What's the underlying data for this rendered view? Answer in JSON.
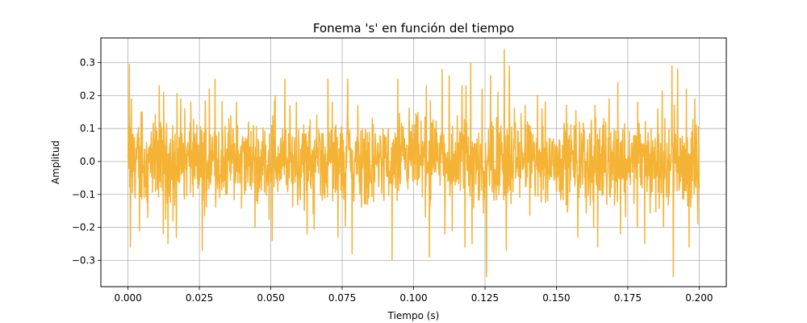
{
  "chart_data": {
    "type": "line",
    "title": "Fonema 's' en función del tiempo",
    "xlabel": "Tiempo (s)",
    "ylabel": "Amplitud",
    "xlim": [
      -0.0095,
      0.2095
    ],
    "ylim": [
      -0.38,
      0.375
    ],
    "grid": true,
    "x_ticks": [
      0.0,
      0.025,
      0.05,
      0.075,
      0.1,
      0.125,
      0.15,
      0.175,
      0.2
    ],
    "x_tick_labels": [
      "0.000",
      "0.025",
      "0.050",
      "0.075",
      "0.100",
      "0.125",
      "0.150",
      "0.175",
      "0.200"
    ],
    "y_ticks": [
      0.3,
      0.2,
      0.1,
      0.0,
      -0.1,
      -0.2,
      -0.3
    ],
    "y_tick_labels": [
      "0.3",
      "0.2",
      "0.1",
      "0.0",
      "−0.1",
      "−0.2",
      "−0.3"
    ],
    "series": [
      {
        "color": "#f5b335",
        "x_start": 0.0,
        "x_end": 0.2,
        "peaks": [
          {
            "x": 0.0005,
            "y": 0.295
          },
          {
            "x": 0.0008,
            "y": -0.26
          },
          {
            "x": 0.0012,
            "y": 0.19
          },
          {
            "x": 0.004,
            "y": -0.21
          },
          {
            "x": 0.005,
            "y": 0.15
          },
          {
            "x": 0.007,
            "y": -0.17
          },
          {
            "x": 0.011,
            "y": 0.23
          },
          {
            "x": 0.0125,
            "y": 0.21
          },
          {
            "x": 0.014,
            "y": -0.25
          },
          {
            "x": 0.017,
            "y": -0.23
          },
          {
            "x": 0.0185,
            "y": 0.19
          },
          {
            "x": 0.022,
            "y": 0.18
          },
          {
            "x": 0.026,
            "y": -0.27
          },
          {
            "x": 0.0285,
            "y": 0.22
          },
          {
            "x": 0.0305,
            "y": 0.25
          },
          {
            "x": 0.038,
            "y": 0.18
          },
          {
            "x": 0.0445,
            "y": -0.2
          },
          {
            "x": 0.0505,
            "y": -0.24
          },
          {
            "x": 0.0515,
            "y": 0.2
          },
          {
            "x": 0.055,
            "y": 0.25
          },
          {
            "x": 0.059,
            "y": 0.18
          },
          {
            "x": 0.0627,
            "y": -0.22
          },
          {
            "x": 0.07,
            "y": 0.25
          },
          {
            "x": 0.0715,
            "y": 0.18
          },
          {
            "x": 0.0735,
            "y": -0.23
          },
          {
            "x": 0.077,
            "y": 0.25
          },
          {
            "x": 0.0785,
            "y": -0.28
          },
          {
            "x": 0.0805,
            "y": 0.17
          },
          {
            "x": 0.0855,
            "y": 0.13
          },
          {
            "x": 0.0925,
            "y": -0.3
          },
          {
            "x": 0.0945,
            "y": 0.25
          },
          {
            "x": 0.1045,
            "y": 0.23
          },
          {
            "x": 0.1055,
            "y": -0.29
          },
          {
            "x": 0.11,
            "y": 0.28
          },
          {
            "x": 0.111,
            "y": -0.22
          },
          {
            "x": 0.1135,
            "y": -0.21
          },
          {
            "x": 0.1125,
            "y": 0.26
          },
          {
            "x": 0.117,
            "y": 0.23
          },
          {
            "x": 0.118,
            "y": -0.26
          },
          {
            "x": 0.1183,
            "y": 0.23
          },
          {
            "x": 0.12,
            "y": 0.3
          },
          {
            "x": 0.1205,
            "y": -0.25
          },
          {
            "x": 0.124,
            "y": 0.22
          },
          {
            "x": 0.1255,
            "y": -0.35
          },
          {
            "x": 0.127,
            "y": 0.26
          },
          {
            "x": 0.1295,
            "y": 0.21
          },
          {
            "x": 0.1318,
            "y": 0.34
          },
          {
            "x": 0.1325,
            "y": -0.27
          },
          {
            "x": 0.1335,
            "y": 0.29
          },
          {
            "x": 0.139,
            "y": 0.17
          },
          {
            "x": 0.145,
            "y": 0.16
          },
          {
            "x": 0.1535,
            "y": 0.17
          },
          {
            "x": 0.1575,
            "y": -0.23
          },
          {
            "x": 0.163,
            "y": -0.2
          },
          {
            "x": 0.1635,
            "y": 0.17
          },
          {
            "x": 0.1645,
            "y": -0.26
          },
          {
            "x": 0.1685,
            "y": 0.19
          },
          {
            "x": 0.1715,
            "y": 0.24
          },
          {
            "x": 0.1725,
            "y": -0.22
          },
          {
            "x": 0.1785,
            "y": 0.18
          },
          {
            "x": 0.181,
            "y": -0.25
          },
          {
            "x": 0.1855,
            "y": 0.16
          },
          {
            "x": 0.1875,
            "y": -0.2
          },
          {
            "x": 0.1905,
            "y": 0.29
          },
          {
            "x": 0.191,
            "y": -0.35
          },
          {
            "x": 0.1925,
            "y": 0.28
          },
          {
            "x": 0.1955,
            "y": 0.22
          },
          {
            "x": 0.1965,
            "y": -0.26
          },
          {
            "x": 0.1985,
            "y": 0.19
          },
          {
            "x": 0.1995,
            "y": -0.19
          }
        ]
      }
    ]
  }
}
